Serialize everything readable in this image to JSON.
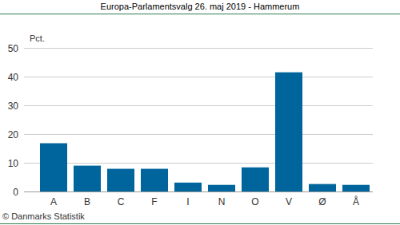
{
  "chart_data": {
    "type": "bar",
    "title": "Europa-Parlamentsvalg 26. maj 2019 - Hammerum",
    "y_label": "Pct.",
    "source": "© Danmarks Statistik",
    "categories": [
      "A",
      "B",
      "C",
      "F",
      "I",
      "N",
      "O",
      "V",
      "Ø",
      "Å"
    ],
    "values": [
      16.8,
      9.0,
      7.9,
      7.9,
      3.1,
      2.3,
      8.4,
      41.5,
      2.6,
      2.3
    ],
    "color": "#00659c",
    "ylim": [
      0,
      50
    ],
    "yticks": [
      0,
      10,
      20,
      30,
      40,
      50
    ],
    "grid": true
  }
}
